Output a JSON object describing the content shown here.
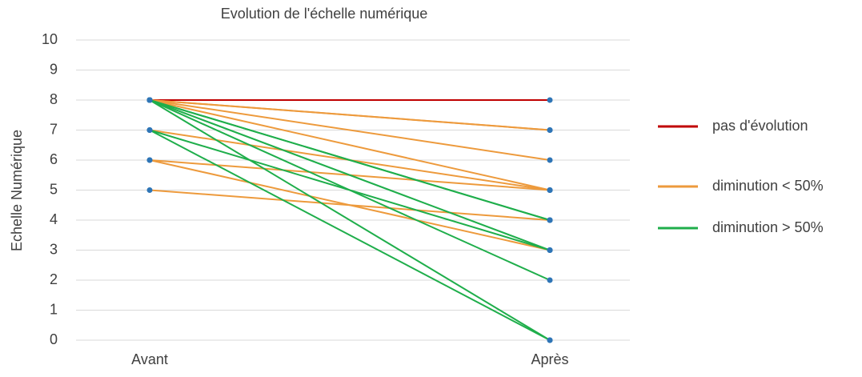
{
  "chart_data": {
    "type": "slope",
    "title": "Evolution de l'échelle numérique",
    "y_label": "Echelle Numérique",
    "categories": [
      "Avant",
      "Après"
    ],
    "ylim": [
      0,
      10
    ],
    "yticks": [
      0,
      1,
      2,
      3,
      4,
      5,
      6,
      7,
      8,
      9,
      10
    ],
    "grid": true,
    "point_color": "#2e75b6",
    "series": [
      {
        "name": "pas d'évolution",
        "color": "#c00000",
        "values": [
          [
            8,
            8
          ]
        ]
      },
      {
        "name": "diminution < 50%",
        "color": "#ed9a3c",
        "values": [
          [
            8,
            7
          ],
          [
            8,
            7
          ],
          [
            8,
            6
          ],
          [
            8,
            5
          ],
          [
            7,
            5
          ],
          [
            6,
            5
          ],
          [
            6,
            3
          ],
          [
            5,
            4
          ]
        ]
      },
      {
        "name": "diminution > 50%",
        "color": "#1fae4b",
        "values": [
          [
            8,
            4
          ],
          [
            8,
            4
          ],
          [
            8,
            3
          ],
          [
            8,
            2
          ],
          [
            8,
            0
          ],
          [
            7,
            3
          ],
          [
            7,
            0
          ]
        ]
      }
    ]
  }
}
